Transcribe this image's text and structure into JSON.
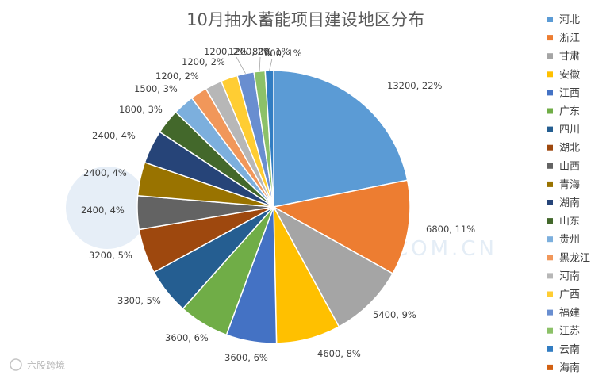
{
  "chart_data": {
    "type": "pie",
    "title": "10月抽水蓄能项目建设地区分布",
    "slices": [
      {
        "name": "河北",
        "value": 13200,
        "pct": "22%",
        "color": "#5b9bd5"
      },
      {
        "name": "浙江",
        "value": 6800,
        "pct": "11%",
        "color": "#ed7d31"
      },
      {
        "name": "甘肃",
        "value": 5400,
        "pct": "9%",
        "color": "#a5a5a5"
      },
      {
        "name": "安徽",
        "value": 4600,
        "pct": "8%",
        "color": "#ffc000"
      },
      {
        "name": "江西",
        "value": 3600,
        "pct": "6%",
        "color": "#4472c4"
      },
      {
        "name": "广东",
        "value": 3600,
        "pct": "6%",
        "color": "#70ad47"
      },
      {
        "name": "四川",
        "value": 3300,
        "pct": "5%",
        "color": "#255e91"
      },
      {
        "name": "湖北",
        "value": 3200,
        "pct": "5%",
        "color": "#9e480e"
      },
      {
        "name": "山西",
        "value": 2400,
        "pct": "4%",
        "color": "#636363"
      },
      {
        "name": "青海",
        "value": 2400,
        "pct": "4%",
        "color": "#997300"
      },
      {
        "name": "湖南",
        "value": 2400,
        "pct": "4%",
        "color": "#264478"
      },
      {
        "name": "山东",
        "value": 1800,
        "pct": "3%",
        "color": "#43682b"
      },
      {
        "name": "贵州",
        "value": 1500,
        "pct": "3%",
        "color": "#7cafdd"
      },
      {
        "name": "黑龙江",
        "value": 1200,
        "pct": "2%",
        "color": "#f1975a"
      },
      {
        "name": "河南",
        "value": 1200,
        "pct": "2%",
        "color": "#b7b7b7"
      },
      {
        "name": "广西",
        "value": 1200,
        "pct": "2%",
        "color": "#ffcd33"
      },
      {
        "name": "福建",
        "value": 1200,
        "pct": "2%",
        "color": "#698ed0"
      },
      {
        "name": "江苏",
        "value": 800,
        "pct": "1%",
        "color": "#8cc168"
      },
      {
        "name": "云南",
        "value": 600,
        "pct": "1%",
        "color": "#327dc2"
      },
      {
        "name": "海南",
        "value": 0,
        "pct": "",
        "color": "#d26012"
      }
    ],
    "legend_position": "right"
  },
  "watermark": {
    "text": "CHINA-NENGYUAN.COM.CN",
    "brand": "六股跨境"
  }
}
